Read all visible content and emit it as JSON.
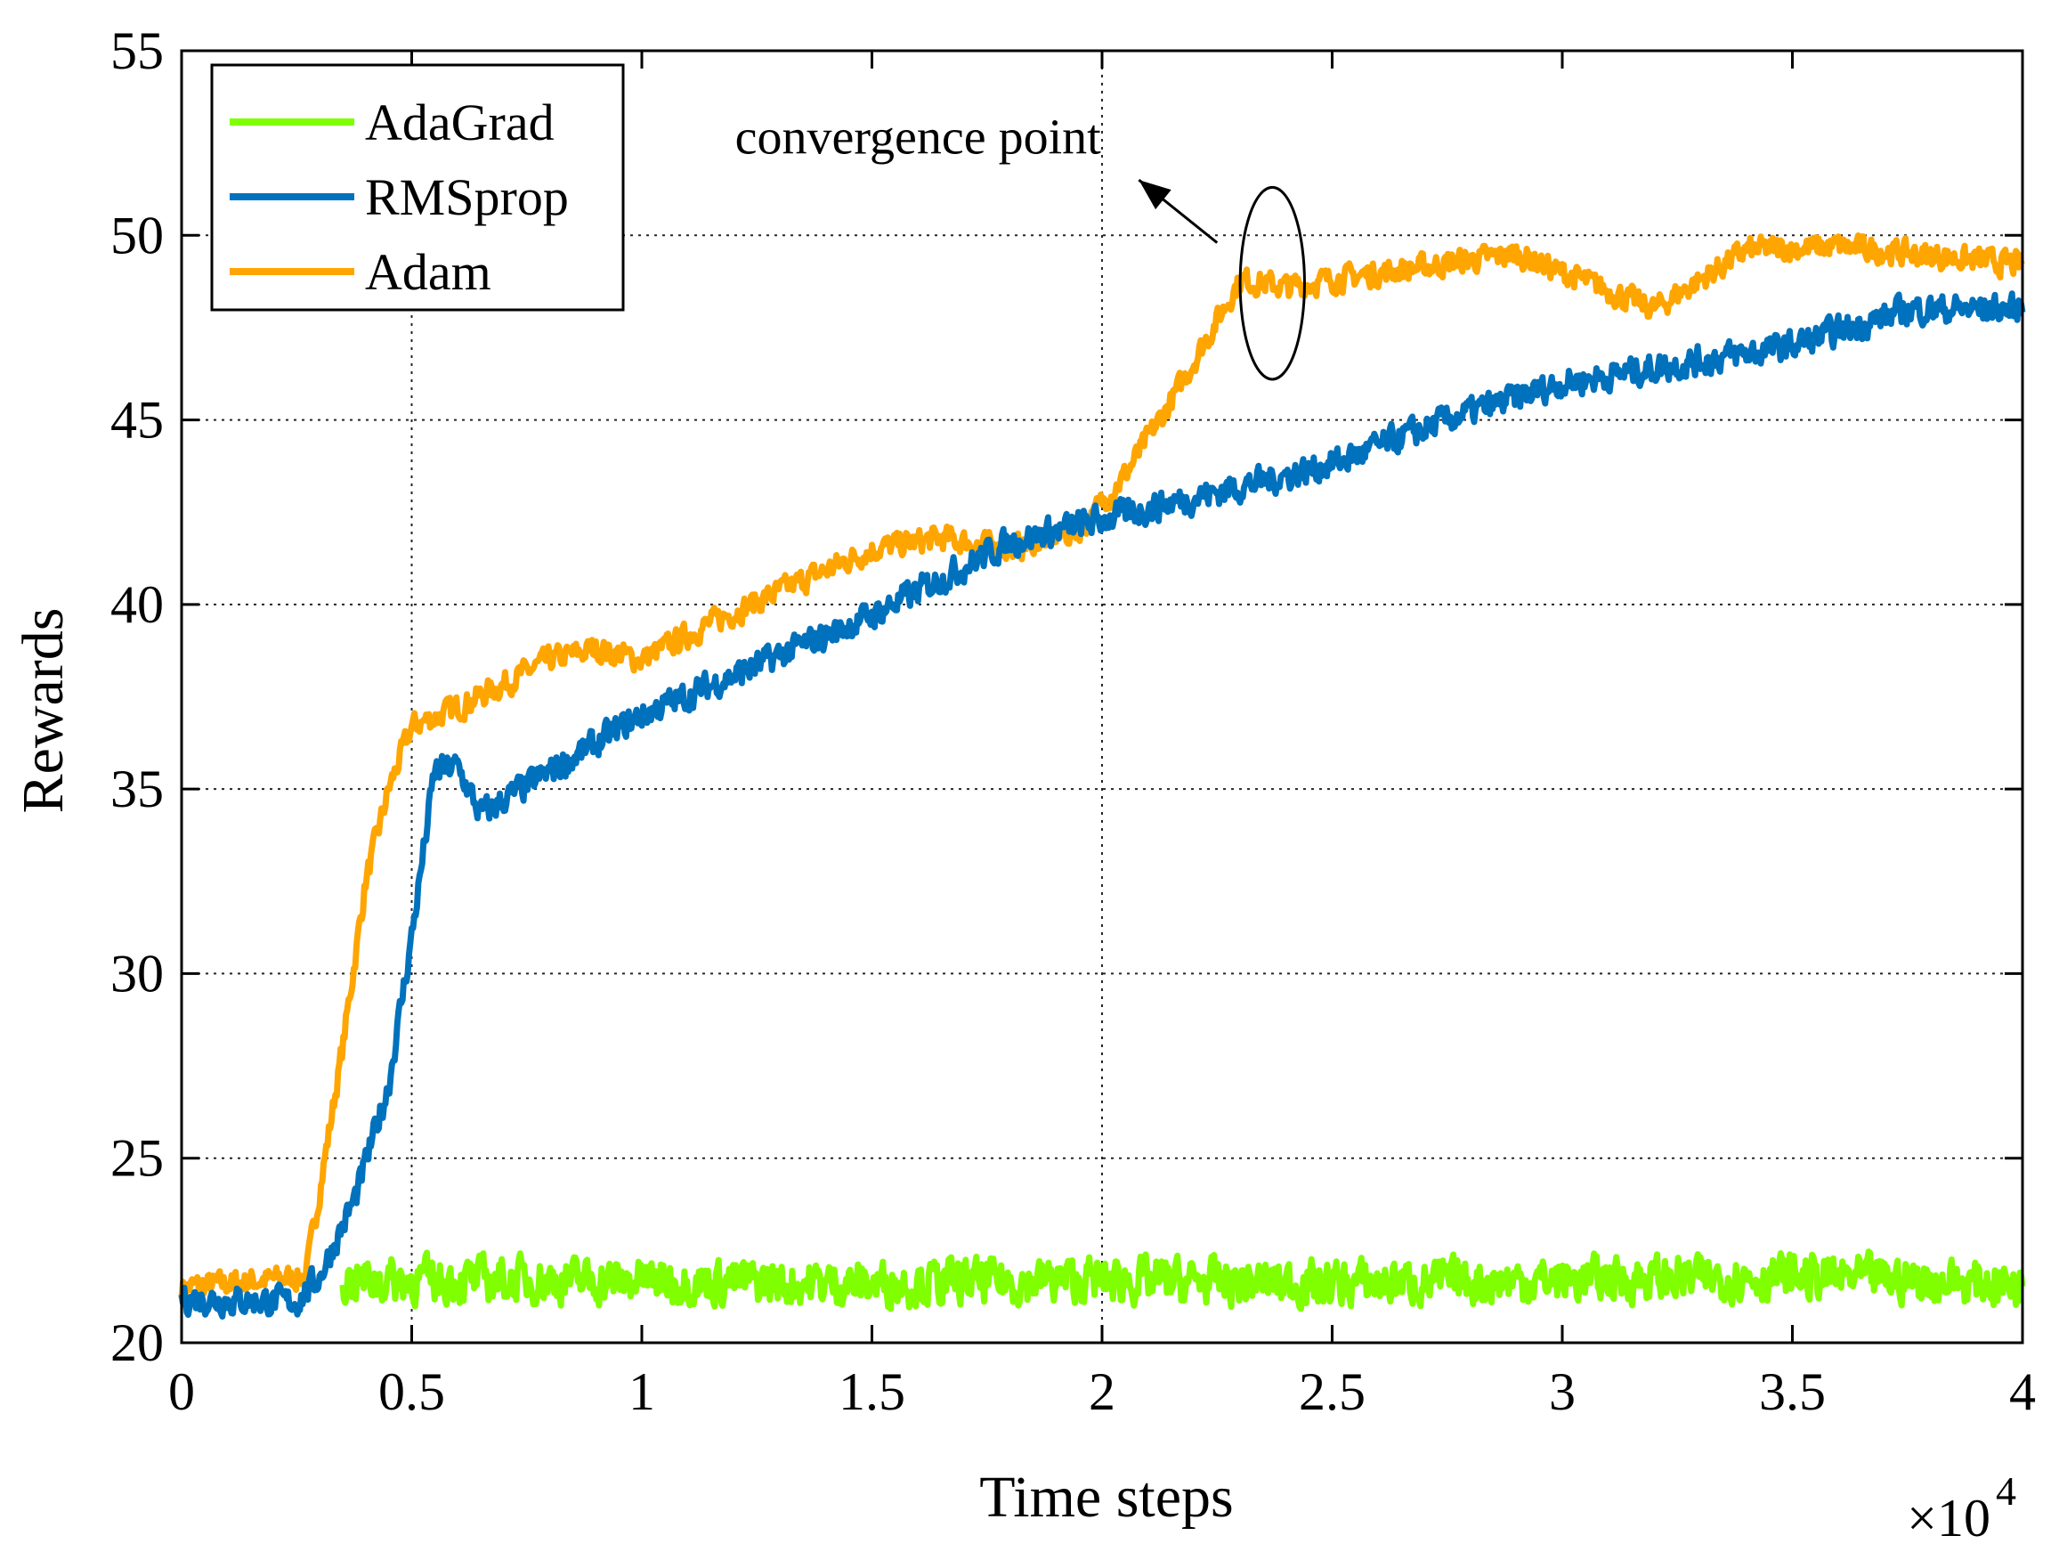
{
  "chart_data": {
    "type": "line",
    "title": "",
    "xlabel": "Time steps",
    "ylabel": "Rewards",
    "x_exponent_label": "×10",
    "x_exponent_power": "4",
    "xlim": [
      0,
      4
    ],
    "ylim": [
      20,
      55
    ],
    "xticks": [
      0,
      0.5,
      1,
      1.5,
      2,
      2.5,
      3,
      3.5,
      4
    ],
    "xtick_labels": [
      "0",
      "0.5",
      "1",
      "1.5",
      "2",
      "2.5",
      "3",
      "3.5",
      "4"
    ],
    "yticks": [
      20,
      25,
      30,
      35,
      40,
      45,
      50,
      55
    ],
    "ytick_labels": [
      "20",
      "25",
      "30",
      "35",
      "40",
      "45",
      "50",
      "55"
    ],
    "grid_x": [
      0.5,
      2
    ],
    "grid_y": [
      25,
      30,
      35,
      40,
      45,
      50
    ],
    "legend_position": "top-left",
    "noise_seed": 7,
    "series": [
      {
        "name": "AdaGrad",
        "color": "#7fff00",
        "noise": 0.55,
        "draw_order": 3,
        "points": [
          [
            0.35,
            21.7
          ],
          [
            0.8,
            21.7
          ],
          [
            1.5,
            21.6
          ],
          [
            2.0,
            21.7
          ],
          [
            2.5,
            21.6
          ],
          [
            3.0,
            21.7
          ],
          [
            3.5,
            21.8
          ],
          [
            4.0,
            21.6
          ]
        ]
      },
      {
        "name": "RMSprop",
        "color": "#0072bd",
        "noise": 0.35,
        "draw_order": 2,
        "points": [
          [
            0,
            21.2
          ],
          [
            0.25,
            21.1
          ],
          [
            0.3,
            21.8
          ],
          [
            0.38,
            24.0
          ],
          [
            0.45,
            27.0
          ],
          [
            0.5,
            31.0
          ],
          [
            0.55,
            35.5
          ],
          [
            0.6,
            35.6
          ],
          [
            0.65,
            34.3
          ],
          [
            0.7,
            34.7
          ],
          [
            1.0,
            37.0
          ],
          [
            1.5,
            39.7
          ],
          [
            1.8,
            41.7
          ],
          [
            2.0,
            42.3
          ],
          [
            2.5,
            43.8
          ],
          [
            2.75,
            45.0
          ],
          [
            3.0,
            46.0
          ],
          [
            3.5,
            47.0
          ],
          [
            3.75,
            48.0
          ],
          [
            4.0,
            48.0
          ]
        ]
      },
      {
        "name": "Adam",
        "color": "#ffa500",
        "noise": 0.3,
        "draw_order": 1,
        "points": [
          [
            0,
            21.5
          ],
          [
            0.27,
            21.8
          ],
          [
            0.35,
            28.0
          ],
          [
            0.4,
            32.5
          ],
          [
            0.45,
            35.0
          ],
          [
            0.5,
            36.7
          ],
          [
            0.6,
            37.2
          ],
          [
            0.8,
            38.5
          ],
          [
            0.9,
            38.8
          ],
          [
            1.0,
            38.5
          ],
          [
            1.15,
            39.5
          ],
          [
            1.5,
            41.5
          ],
          [
            1.65,
            41.8
          ],
          [
            1.8,
            41.5
          ],
          [
            1.95,
            42.0
          ],
          [
            2.05,
            43.5
          ],
          [
            2.15,
            45.5
          ],
          [
            2.3,
            48.8
          ],
          [
            2.4,
            48.6
          ],
          [
            2.5,
            48.8
          ],
          [
            2.9,
            49.5
          ],
          [
            3.1,
            48.5
          ],
          [
            3.2,
            48.0
          ],
          [
            3.4,
            49.6
          ],
          [
            3.6,
            49.7
          ],
          [
            4.0,
            49.2
          ]
        ]
      }
    ],
    "annotation": {
      "text": "convergence point",
      "ellipse_center": [
        2.37,
        48.7
      ],
      "ellipse_radius_x": 0.07,
      "ellipse_radius_y": 2.6,
      "arrow_from": [
        2.25,
        49.8
      ],
      "arrow_to": [
        2.08,
        51.5
      ],
      "text_anchor": [
        1.6,
        52.7
      ]
    }
  }
}
